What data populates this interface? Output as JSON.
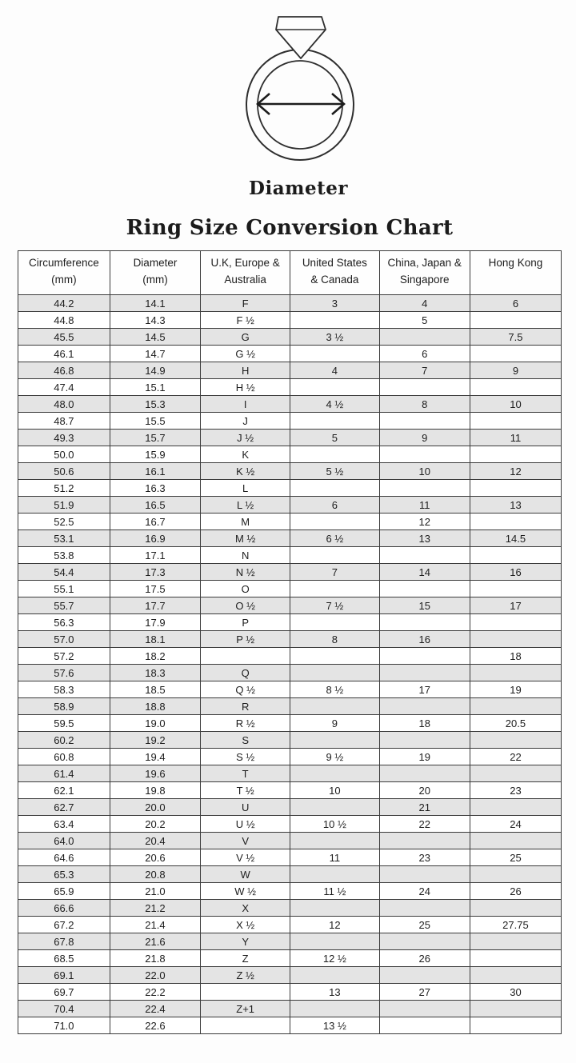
{
  "page": {
    "diagram": {
      "label": "Diameter"
    },
    "title": "Ring Size Conversion Chart",
    "colors": {
      "background": "#fdfdfd",
      "table_border": "#3b3b3b",
      "stripe_odd": "#e4e4e4",
      "stripe_even": "#ffffff",
      "text": "#1d1d1d"
    },
    "icons": {
      "ring": "diamond-ring-icon",
      "arrow": "diameter-arrow-icon"
    }
  },
  "chart_data": {
    "type": "table",
    "title": "Ring Size Conversion Chart",
    "columns": [
      {
        "key": "circumference_mm",
        "lines": [
          "Circumference",
          "(mm)"
        ]
      },
      {
        "key": "diameter_mm",
        "lines": [
          "Diameter",
          "(mm)"
        ]
      },
      {
        "key": "uk_europe_australia",
        "lines": [
          "U.K, Europe &",
          "Australia"
        ]
      },
      {
        "key": "us_canada",
        "lines": [
          "United States",
          "& Canada"
        ]
      },
      {
        "key": "china_japan_singapore",
        "lines": [
          "China, Japan &",
          "Singapore"
        ]
      },
      {
        "key": "hong_kong",
        "lines": [
          "Hong Kong"
        ]
      }
    ],
    "rows": [
      [
        "44.2",
        "14.1",
        "F",
        "3",
        "4",
        "6"
      ],
      [
        "44.8",
        "14.3",
        "F ½",
        "",
        "5",
        ""
      ],
      [
        "45.5",
        "14.5",
        "G",
        "3 ½",
        "",
        "7.5"
      ],
      [
        "46.1",
        "14.7",
        "G ½",
        "",
        "6",
        ""
      ],
      [
        "46.8",
        "14.9",
        "H",
        "4",
        "7",
        "9"
      ],
      [
        "47.4",
        "15.1",
        "H ½",
        "",
        "",
        ""
      ],
      [
        "48.0",
        "15.3",
        "I",
        "4 ½",
        "8",
        "10"
      ],
      [
        "48.7",
        "15.5",
        "J",
        "",
        "",
        ""
      ],
      [
        "49.3",
        "15.7",
        "J ½",
        "5",
        "9",
        "11"
      ],
      [
        "50.0",
        "15.9",
        "K",
        "",
        "",
        ""
      ],
      [
        "50.6",
        "16.1",
        "K ½",
        "5 ½",
        "10",
        "12"
      ],
      [
        "51.2",
        "16.3",
        "L",
        "",
        "",
        ""
      ],
      [
        "51.9",
        "16.5",
        "L ½",
        "6",
        "11",
        "13"
      ],
      [
        "52.5",
        "16.7",
        "M",
        "",
        "12",
        ""
      ],
      [
        "53.1",
        "16.9",
        "M ½",
        "6 ½",
        "13",
        "14.5"
      ],
      [
        "53.8",
        "17.1",
        "N",
        "",
        "",
        ""
      ],
      [
        "54.4",
        "17.3",
        "N ½",
        "7",
        "14",
        "16"
      ],
      [
        "55.1",
        "17.5",
        "O",
        "",
        "",
        ""
      ],
      [
        "55.7",
        "17.7",
        "O ½",
        "7 ½",
        "15",
        "17"
      ],
      [
        "56.3",
        "17.9",
        "P",
        "",
        "",
        ""
      ],
      [
        "57.0",
        "18.1",
        "P ½",
        "8",
        "16",
        ""
      ],
      [
        "57.2",
        "18.2",
        "",
        "",
        "",
        "18"
      ],
      [
        "57.6",
        "18.3",
        "Q",
        "",
        "",
        ""
      ],
      [
        "58.3",
        "18.5",
        "Q ½",
        "8 ½",
        "17",
        "19"
      ],
      [
        "58.9",
        "18.8",
        "R",
        "",
        "",
        ""
      ],
      [
        "59.5",
        "19.0",
        "R ½",
        "9",
        "18",
        "20.5"
      ],
      [
        "60.2",
        "19.2",
        "S",
        "",
        "",
        ""
      ],
      [
        "60.8",
        "19.4",
        "S ½",
        "9 ½",
        "19",
        "22"
      ],
      [
        "61.4",
        "19.6",
        "T",
        "",
        "",
        ""
      ],
      [
        "62.1",
        "19.8",
        "T ½",
        "10",
        "20",
        "23"
      ],
      [
        "62.7",
        "20.0",
        "U",
        "",
        "21",
        ""
      ],
      [
        "63.4",
        "20.2",
        "U ½",
        "10 ½",
        "22",
        "24"
      ],
      [
        "64.0",
        "20.4",
        "V",
        "",
        "",
        ""
      ],
      [
        "64.6",
        "20.6",
        "V ½",
        "11",
        "23",
        "25"
      ],
      [
        "65.3",
        "20.8",
        "W",
        "",
        "",
        ""
      ],
      [
        "65.9",
        "21.0",
        "W ½",
        "11 ½",
        "24",
        "26"
      ],
      [
        "66.6",
        "21.2",
        "X",
        "",
        "",
        ""
      ],
      [
        "67.2",
        "21.4",
        "X ½",
        "12",
        "25",
        "27.75"
      ],
      [
        "67.8",
        "21.6",
        "Y",
        "",
        "",
        ""
      ],
      [
        "68.5",
        "21.8",
        "Z",
        "12 ½",
        "26",
        ""
      ],
      [
        "69.1",
        "22.0",
        "Z ½",
        "",
        "",
        ""
      ],
      [
        "69.7",
        "22.2",
        "",
        "13",
        "27",
        "30"
      ],
      [
        "70.4",
        "22.4",
        "Z+1",
        "",
        "",
        ""
      ],
      [
        "71.0",
        "22.6",
        "",
        "13 ½",
        "",
        ""
      ]
    ]
  }
}
